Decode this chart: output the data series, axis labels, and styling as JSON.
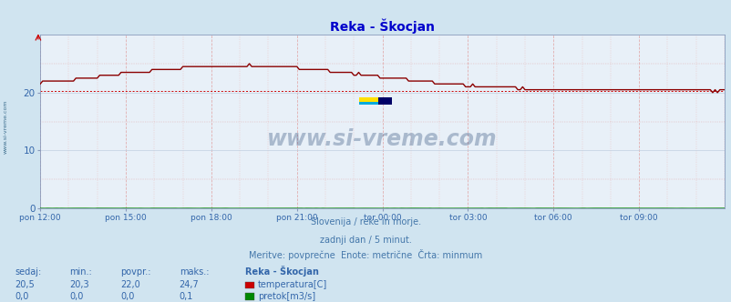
{
  "title": "Reka - Škocjan",
  "title_color": "#0000cc",
  "bg_color": "#d0e4f0",
  "plot_bg_color": "#e8f0f8",
  "grid_color_major": "#c0cfe0",
  "grid_color_minor": "#d8e4ee",
  "x_tick_labels": [
    "pon 12:00",
    "pon 15:00",
    "pon 18:00",
    "pon 21:00",
    "tor 00:00",
    "tor 03:00",
    "tor 06:00",
    "tor 09:00"
  ],
  "x_tick_positions": [
    0,
    36,
    72,
    108,
    144,
    180,
    216,
    252
  ],
  "y_ticks": [
    0,
    10,
    20
  ],
  "ylim": [
    0,
    30
  ],
  "xlim": [
    0,
    288
  ],
  "temp_color": "#8b0000",
  "flow_color": "#008800",
  "min_line_color": "#cc0000",
  "footer_line1": "Slovenija / reke in morje.",
  "footer_line2": "zadnji dan / 5 minut.",
  "footer_line3": "Meritve: povprečne  Enote: metrične  Črta: minmum",
  "footer_color": "#4477aa",
  "watermark": "www.si-vreme.com",
  "watermark_color": "#1a3a6b",
  "table_header": [
    "sedaj:",
    "min.:",
    "povpr.:",
    "maks.:",
    "Reka - Škocjan"
  ],
  "table_row1": [
    "20,5",
    "20,3",
    "22,0",
    "24,7",
    "temperatura[C]"
  ],
  "table_row2": [
    "0,0",
    "0,0",
    "0,0",
    "0,1",
    "pretok[m3/s]"
  ],
  "table_color": "#3366aa",
  "temp_legend_color": "#cc0000",
  "flow_legend_color": "#008800",
  "sidebar_text": "www.si-vreme.com",
  "sidebar_color": "#1a5276",
  "peak_t": 84,
  "temp_base": 20.3,
  "temp_peak": 24.7,
  "min_val": 20.3
}
